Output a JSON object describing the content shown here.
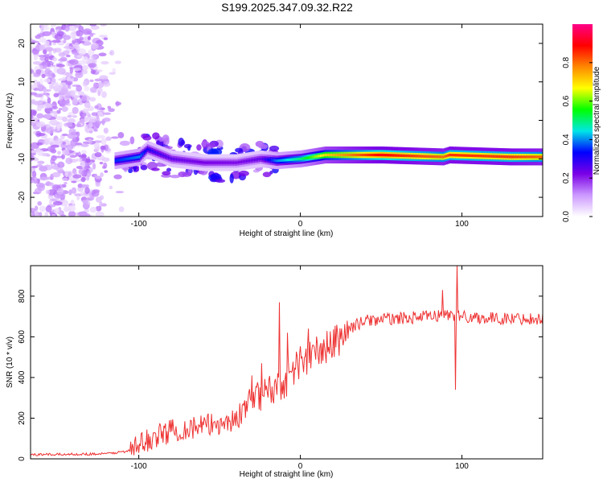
{
  "title": "S199.2025.347.09.32.R22",
  "colors": {
    "snr_line": "#ee3333",
    "axis": "#000000",
    "background": "#ffffff",
    "colormap": [
      "#ffffff",
      "#cc99ff",
      "#7a00e6",
      "#0000ff",
      "#00e6e6",
      "#00ff00",
      "#ffff00",
      "#ff8800",
      "#ff0000",
      "#ff0088"
    ]
  },
  "chart_data": [
    {
      "type": "heatmap",
      "name": "spectrogram",
      "xlabel": "Height of straight line (km)",
      "ylabel": "Frequency (Hz)",
      "xlim": [
        -167,
        150
      ],
      "ylim": [
        -25,
        25
      ],
      "xticks": [
        -100,
        0,
        100
      ],
      "xtick_labels": [
        "-100",
        "0",
        "100"
      ],
      "yticks": [
        -20,
        -10,
        0,
        10,
        20
      ],
      "ytick_labels": [
        "-20",
        "-10",
        "0",
        "10",
        "20"
      ],
      "colorbar": {
        "label": "Normalized spectral amplitude",
        "range": [
          0,
          1
        ],
        "ticks": [
          0.0,
          0.2,
          0.4,
          0.6,
          0.8
        ],
        "tick_labels": [
          "0.0",
          "0.2",
          "0.4",
          "0.6",
          "0.8"
        ]
      },
      "ridge": {
        "description_points_x": [
          -115,
          -100,
          -95,
          -80,
          -60,
          -40,
          -25,
          -15,
          0,
          15,
          50,
          88,
          92,
          130,
          150
        ],
        "frequency_hz": [
          -10.5,
          -9.5,
          -7.5,
          -10,
          -11,
          -11,
          -10,
          -10.5,
          -10,
          -9,
          -9,
          -9.5,
          -9,
          -9.5,
          -9.5
        ],
        "amplitude": [
          0.35,
          0.4,
          0.3,
          0.25,
          0.22,
          0.22,
          0.25,
          0.4,
          0.5,
          0.7,
          0.9,
          0.8,
          0.85,
          0.85,
          0.8
        ]
      },
      "noise_region_x": [
        -167,
        -110
      ]
    },
    {
      "type": "line",
      "name": "snr",
      "xlabel": "Height of straight line (km)",
      "ylabel": "SNR (10 * v/v)",
      "xlim": [
        -167,
        150
      ],
      "ylim": [
        0,
        950
      ],
      "xticks": [
        -100,
        0,
        100
      ],
      "xtick_labels": [
        "-100",
        "0",
        "100"
      ],
      "yticks": [
        0,
        200,
        400,
        600,
        800
      ],
      "ytick_labels": [
        "0",
        "200",
        "400",
        "600",
        "800"
      ],
      "trend_x": [
        -167,
        -120,
        -105,
        -95,
        -80,
        -60,
        -40,
        -30,
        -20,
        -10,
        0,
        10,
        20,
        30,
        40,
        60,
        80,
        90,
        100,
        120,
        150
      ],
      "trend_y": [
        20,
        25,
        40,
        90,
        140,
        160,
        190,
        300,
        330,
        380,
        480,
        520,
        560,
        640,
        680,
        690,
        700,
        710,
        700,
        690,
        690
      ],
      "spikes": [
        {
          "x": -13,
          "y": 770
        },
        {
          "x": -30,
          "y": 410
        },
        {
          "x": -24,
          "y": 470
        },
        {
          "x": -8,
          "y": 620
        },
        {
          "x": 5,
          "y": 640
        },
        {
          "x": 15,
          "y": 550
        },
        {
          "x": 88,
          "y": 830
        },
        {
          "x": 97,
          "y": 950
        },
        {
          "x": 96,
          "y": 340
        }
      ]
    }
  ]
}
